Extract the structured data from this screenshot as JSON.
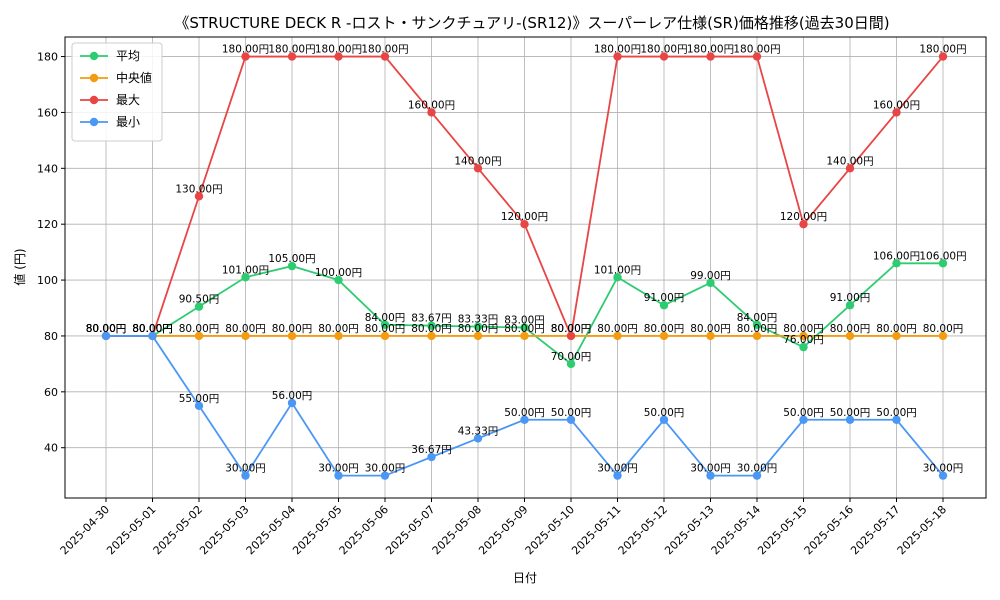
{
  "chart_data": {
    "type": "line",
    "title": "《STRUCTURE DECK R -ロスト・サンクチュアリ-(SR12)》スーパーレア仕様(SR)価格推移(過去30日間)",
    "xlabel": "日付",
    "ylabel": "値 (円)",
    "ylim": [
      22,
      187
    ],
    "yticks": [
      40,
      60,
      80,
      100,
      120,
      140,
      160,
      180
    ],
    "grid": true,
    "legend_position": "top-left",
    "label_suffix": "円",
    "categories": [
      "2025-04-30",
      "2025-05-01",
      "2025-05-02",
      "2025-05-03",
      "2025-05-04",
      "2025-05-05",
      "2025-05-06",
      "2025-05-07",
      "2025-05-08",
      "2025-05-09",
      "2025-05-10",
      "2025-05-11",
      "2025-05-12",
      "2025-05-13",
      "2025-05-14",
      "2025-05-15",
      "2025-05-16",
      "2025-05-17",
      "2025-05-18"
    ],
    "series": [
      {
        "name": "平均",
        "color": "#2ecc71",
        "values": [
          80,
          80,
          90.5,
          101,
          105,
          100,
          84,
          83.67,
          83.33,
          83,
          70,
          101,
          91,
          99,
          84,
          76,
          91,
          106,
          106
        ]
      },
      {
        "name": "中央値",
        "color": "#f39c12",
        "values": [
          80,
          80,
          80,
          80,
          80,
          80,
          80,
          80,
          80,
          80,
          80,
          80,
          80,
          80,
          80,
          80,
          80,
          80,
          80
        ]
      },
      {
        "name": "最大",
        "color": "#e84545",
        "values": [
          80,
          80,
          130,
          180,
          180,
          180,
          180,
          160,
          140,
          120,
          80,
          180,
          180,
          180,
          180,
          120,
          140,
          160,
          180
        ]
      },
      {
        "name": "最小",
        "color": "#4a97f5",
        "values": [
          80,
          80,
          55,
          30,
          56,
          30,
          30,
          36.67,
          43.33,
          50,
          50,
          30,
          50,
          30,
          30,
          50,
          50,
          50,
          30
        ]
      }
    ]
  }
}
